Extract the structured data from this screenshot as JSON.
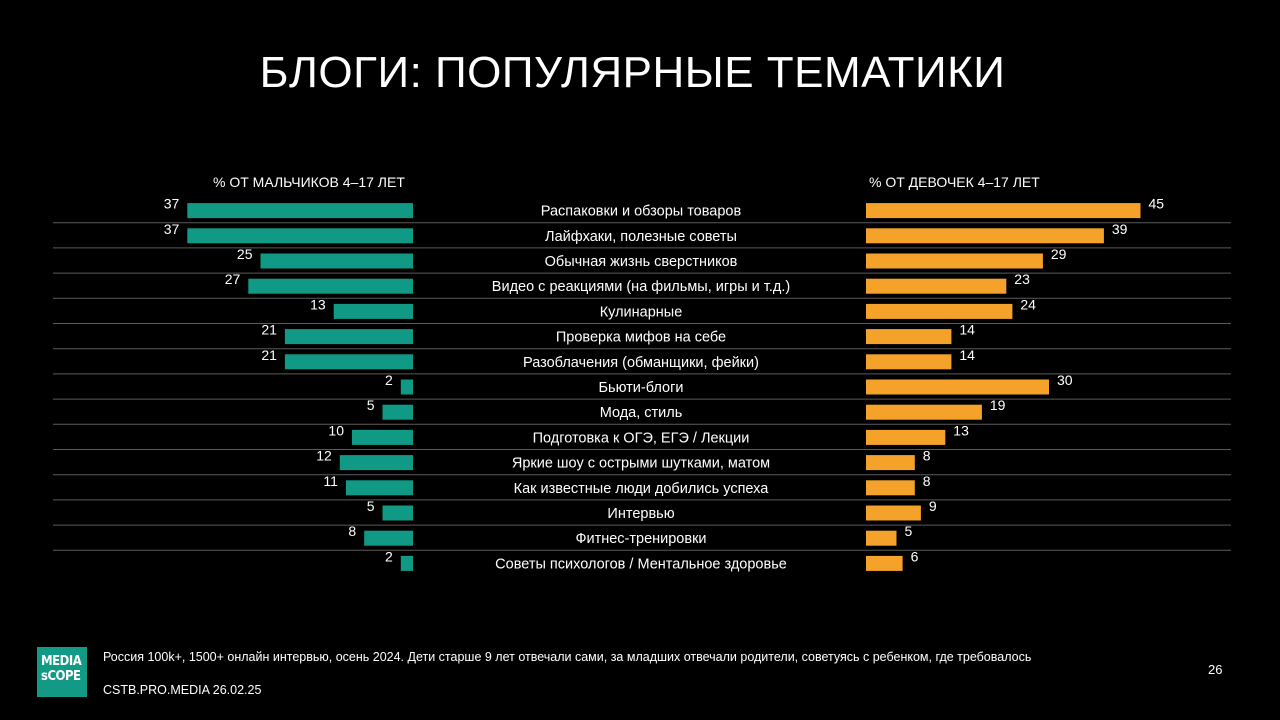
{
  "title": "БЛОГИ: ПОПУЛЯРНЫЕ ТЕМАТИКИ",
  "colors": {
    "boys": "#109a85",
    "girls": "#f5a22a",
    "grid": "#5a5a5a"
  },
  "chart_data": {
    "type": "bar",
    "orientation": "horizontal-butterfly",
    "left_header": "% ОТ МАЛЬЧИКОВ 4–17 ЛЕТ",
    "right_header": "% ОТ ДЕВОЧЕК 4–17 ЛЕТ",
    "categories": [
      "Распаковки и обзоры товаров",
      "Лайфхаки, полезные советы",
      "Обычная жизнь сверстников",
      "Видео с реакциями (на фильмы, игры и т.д.)",
      "Кулинарные",
      "Проверка мифов на себе",
      "Разоблачения (обманщики, фейки)",
      "Бьюти-блоги",
      "Мода, стиль",
      "Подготовка к ОГЭ, ЕГЭ / Лекции",
      "Яркие шоу с острыми шутками, матом",
      "Как известные люди добились успеха",
      "Интервью",
      "Фитнес-тренировки",
      "Советы психологов / Ментальное здоровье"
    ],
    "series": [
      {
        "values": [
          37,
          37,
          25,
          27,
          13,
          21,
          21,
          2,
          5,
          10,
          12,
          11,
          5,
          8,
          2
        ]
      },
      {
        "values": [
          45,
          39,
          29,
          23,
          24,
          14,
          14,
          30,
          19,
          13,
          8,
          8,
          9,
          5,
          6
        ]
      }
    ]
  },
  "footer": {
    "note": "Россия 100k+, 1500+ онлайн интервью, осень 2024. Дети старше 9 лет отвечали сами, за младших отвечали родители, советуясь с ребенком, где требовалось",
    "source": "CSTB.PRO.MEDIA 26.02.25",
    "page_number": "26"
  },
  "logo": {
    "line1": "MEDIA",
    "line2": "sCOPE"
  }
}
